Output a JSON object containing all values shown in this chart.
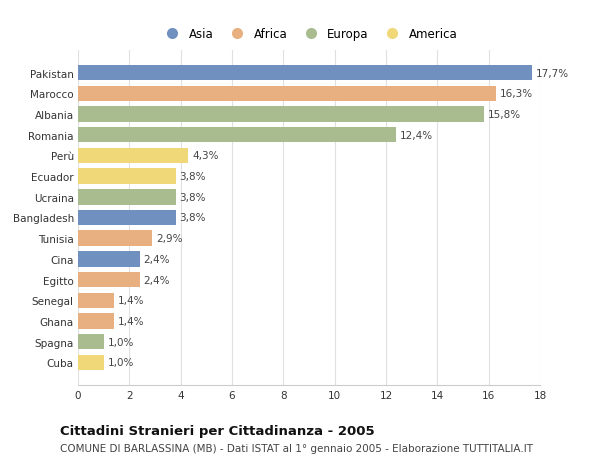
{
  "categories": [
    "Pakistan",
    "Marocco",
    "Albania",
    "Romania",
    "Perù",
    "Ecuador",
    "Ucraina",
    "Bangladesh",
    "Tunisia",
    "Cina",
    "Egitto",
    "Senegal",
    "Ghana",
    "Spagna",
    "Cuba"
  ],
  "values": [
    17.7,
    16.3,
    15.8,
    12.4,
    4.3,
    3.8,
    3.8,
    3.8,
    2.9,
    2.4,
    2.4,
    1.4,
    1.4,
    1.0,
    1.0
  ],
  "labels": [
    "17,7%",
    "16,3%",
    "15,8%",
    "12,4%",
    "4,3%",
    "3,8%",
    "3,8%",
    "3,8%",
    "2,9%",
    "2,4%",
    "2,4%",
    "1,4%",
    "1,4%",
    "1,0%",
    "1,0%"
  ],
  "continents": [
    "Asia",
    "Africa",
    "Europa",
    "Europa",
    "America",
    "America",
    "Europa",
    "Asia",
    "Africa",
    "Asia",
    "Africa",
    "Africa",
    "Africa",
    "Europa",
    "America"
  ],
  "continent_colors": {
    "Asia": "#7090bf",
    "Africa": "#e8b080",
    "Europa": "#a8bc90",
    "America": "#f0d878"
  },
  "legend_order": [
    "Asia",
    "Africa",
    "Europa",
    "America"
  ],
  "title": "Cittadini Stranieri per Cittadinanza - 2005",
  "subtitle": "COMUNE DI BARLASSINA (MB) - Dati ISTAT al 1° gennaio 2005 - Elaborazione TUTTITALIA.IT",
  "xlim": [
    0,
    18
  ],
  "xticks": [
    0,
    2,
    4,
    6,
    8,
    10,
    12,
    14,
    16,
    18
  ],
  "background_color": "#ffffff",
  "plot_bg_color": "#ffffff",
  "grid_color": "#e0e0e0",
  "bar_height": 0.75,
  "label_fontsize": 7.5,
  "tick_fontsize": 7.5,
  "title_fontsize": 9.5,
  "subtitle_fontsize": 7.5
}
